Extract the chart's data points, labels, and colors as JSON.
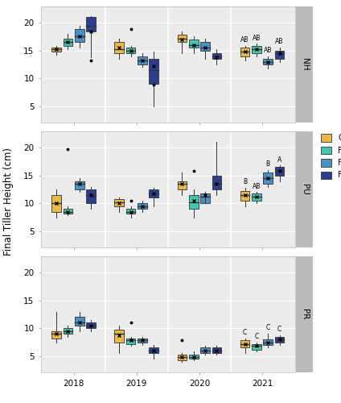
{
  "colors": {
    "CT": "#E8B84B",
    "F2": "#45C4B0",
    "F5": "#4A90C4",
    "F10": "#2C3E8C"
  },
  "ylabel": "Final Tiller Height (cm)",
  "years": [
    "2018",
    "2019",
    "2020",
    "2021"
  ],
  "panels": [
    "NH",
    "PU",
    "PR"
  ],
  "ylim": [
    2,
    23
  ],
  "yticks": [
    5,
    10,
    15,
    20
  ],
  "hline": 15.0,
  "background_color": "#FFFFFF",
  "strip_color": "#BBBBBB",
  "panel_bg": "#EBEBEB",
  "box_data": {
    "NH": {
      "2018": {
        "CT": {
          "q1": 14.8,
          "med": 15.2,
          "q3": 15.5,
          "whislo": 14.2,
          "whishi": 15.8,
          "mean": 15.2,
          "fliers": []
        },
        "F2": {
          "q1": 15.8,
          "med": 16.5,
          "q3": 17.2,
          "whislo": 15.3,
          "whishi": 18.0,
          "mean": 16.5,
          "fliers": []
        },
        "F5": {
          "q1": 16.5,
          "med": 17.5,
          "q3": 18.8,
          "whislo": 15.5,
          "whishi": 19.5,
          "mean": 17.5,
          "fliers": []
        },
        "F10": {
          "q1": 18.5,
          "med": 19.5,
          "q3": 21.0,
          "whislo": 13.8,
          "whishi": 21.2,
          "mean": 18.5,
          "fliers": [
            13.2
          ]
        }
      },
      "2019": {
        "CT": {
          "q1": 14.5,
          "med": 15.2,
          "q3": 16.5,
          "whislo": 13.5,
          "whishi": 17.2,
          "mean": 15.5,
          "fliers": []
        },
        "F2": {
          "q1": 14.5,
          "med": 15.0,
          "q3": 15.5,
          "whislo": 14.0,
          "whishi": 15.8,
          "mean": 15.0,
          "fliers": [
            18.8
          ]
        },
        "F5": {
          "q1": 12.5,
          "med": 13.2,
          "q3": 14.0,
          "whislo": 12.0,
          "whishi": 14.5,
          "mean": 13.2,
          "fliers": []
        },
        "F10": {
          "q1": 9.0,
          "med": 11.5,
          "q3": 13.5,
          "whislo": 5.0,
          "whishi": 14.8,
          "mean": 12.2,
          "fliers": [
            8.8
          ]
        }
      },
      "2020": {
        "CT": {
          "q1": 16.5,
          "med": 17.2,
          "q3": 17.8,
          "whislo": 14.5,
          "whishi": 18.5,
          "mean": 17.0,
          "fliers": []
        },
        "F2": {
          "q1": 15.5,
          "med": 16.0,
          "q3": 17.0,
          "whislo": 14.5,
          "whishi": 17.5,
          "mean": 16.0,
          "fliers": []
        },
        "F5": {
          "q1": 15.0,
          "med": 15.5,
          "q3": 16.5,
          "whislo": 13.5,
          "whishi": 17.2,
          "mean": 15.5,
          "fliers": []
        },
        "F10": {
          "q1": 13.5,
          "med": 14.0,
          "q3": 14.5,
          "whislo": 12.5,
          "whishi": 15.2,
          "mean": 13.8,
          "fliers": []
        }
      },
      "2021": {
        "CT": {
          "q1": 14.0,
          "med": 14.8,
          "q3": 15.5,
          "whislo": 13.2,
          "whishi": 15.8,
          "mean": 14.8,
          "fliers": []
        },
        "F2": {
          "q1": 14.5,
          "med": 15.2,
          "q3": 15.8,
          "whislo": 14.0,
          "whishi": 16.2,
          "mean": 15.2,
          "fliers": []
        },
        "F5": {
          "q1": 12.5,
          "med": 13.0,
          "q3": 13.5,
          "whislo": 11.8,
          "whishi": 14.0,
          "mean": 13.0,
          "fliers": []
        },
        "F10": {
          "q1": 13.5,
          "med": 14.5,
          "q3": 15.0,
          "whislo": 13.0,
          "whishi": 15.5,
          "mean": 14.5,
          "fliers": []
        }
      }
    },
    "PU": {
      "2018": {
        "CT": {
          "q1": 8.5,
          "med": 10.0,
          "q3": 11.5,
          "whislo": 7.5,
          "whishi": 12.5,
          "mean": 10.0,
          "fliers": []
        },
        "F2": {
          "q1": 8.2,
          "med": 8.5,
          "q3": 9.0,
          "whislo": 7.8,
          "whishi": 9.5,
          "mean": 8.5,
          "fliers": [
            19.8
          ]
        },
        "F5": {
          "q1": 12.5,
          "med": 13.5,
          "q3": 14.0,
          "whislo": 12.0,
          "whishi": 14.5,
          "mean": 13.5,
          "fliers": []
        },
        "F10": {
          "q1": 10.0,
          "med": 11.5,
          "q3": 12.5,
          "whislo": 9.0,
          "whishi": 13.0,
          "mean": 11.5,
          "fliers": []
        }
      },
      "2019": {
        "CT": {
          "q1": 9.5,
          "med": 10.2,
          "q3": 10.8,
          "whislo": 8.5,
          "whishi": 11.0,
          "mean": 10.0,
          "fliers": []
        },
        "F2": {
          "q1": 8.2,
          "med": 8.5,
          "q3": 9.0,
          "whislo": 7.5,
          "whishi": 9.5,
          "mean": 8.5,
          "fliers": [
            10.5
          ]
        },
        "F5": {
          "q1": 9.0,
          "med": 9.5,
          "q3": 10.0,
          "whislo": 8.5,
          "whishi": 10.5,
          "mean": 9.5,
          "fliers": []
        },
        "F10": {
          "q1": 11.0,
          "med": 11.8,
          "q3": 12.5,
          "whislo": 9.5,
          "whishi": 12.8,
          "mean": 11.8,
          "fliers": []
        }
      },
      "2020": {
        "CT": {
          "q1": 12.5,
          "med": 13.5,
          "q3": 14.0,
          "whislo": 11.5,
          "whishi": 15.5,
          "mean": 13.5,
          "fliers": []
        },
        "F2": {
          "q1": 9.0,
          "med": 10.2,
          "q3": 11.5,
          "whislo": 7.5,
          "whishi": 12.5,
          "mean": 10.5,
          "fliers": [
            15.8
          ]
        },
        "F5": {
          "q1": 10.0,
          "med": 11.2,
          "q3": 11.8,
          "whislo": 11.2,
          "whishi": 12.0,
          "mean": 11.5,
          "fliers": []
        },
        "F10": {
          "q1": 12.5,
          "med": 13.5,
          "q3": 15.0,
          "whislo": 11.5,
          "whishi": 21.0,
          "mean": 13.5,
          "fliers": []
        }
      },
      "2021": {
        "CT": {
          "q1": 10.5,
          "med": 11.5,
          "q3": 12.2,
          "whislo": 9.5,
          "whishi": 12.8,
          "mean": 11.5,
          "fliers": []
        },
        "F2": {
          "q1": 10.5,
          "med": 11.2,
          "q3": 11.8,
          "whislo": 10.0,
          "whishi": 12.0,
          "mean": 11.2,
          "fliers": []
        },
        "F5": {
          "q1": 13.5,
          "med": 14.5,
          "q3": 15.5,
          "whislo": 13.0,
          "whishi": 16.0,
          "mean": 14.5,
          "fliers": []
        },
        "F10": {
          "q1": 15.0,
          "med": 15.8,
          "q3": 16.5,
          "whislo": 14.0,
          "whishi": 16.8,
          "mean": 15.8,
          "fliers": []
        }
      }
    },
    "PR": {
      "2018": {
        "CT": {
          "q1": 8.2,
          "med": 9.0,
          "q3": 9.5,
          "whislo": 7.5,
          "whishi": 13.0,
          "mean": 9.0,
          "fliers": []
        },
        "F2": {
          "q1": 9.0,
          "med": 9.5,
          "q3": 10.0,
          "whislo": 8.5,
          "whishi": 10.5,
          "mean": 9.5,
          "fliers": []
        },
        "F5": {
          "q1": 10.5,
          "med": 11.0,
          "q3": 12.0,
          "whislo": 9.5,
          "whishi": 13.0,
          "mean": 11.0,
          "fliers": []
        },
        "F10": {
          "q1": 10.0,
          "med": 10.5,
          "q3": 11.0,
          "whislo": 9.5,
          "whishi": 11.5,
          "mean": 10.5,
          "fliers": []
        }
      },
      "2019": {
        "CT": {
          "q1": 7.5,
          "med": 9.0,
          "q3": 9.8,
          "whislo": 5.5,
          "whishi": 10.5,
          "mean": 8.8,
          "fliers": []
        },
        "F2": {
          "q1": 7.2,
          "med": 7.8,
          "q3": 8.2,
          "whislo": 6.8,
          "whishi": 8.5,
          "mean": 7.8,
          "fliers": [
            11.0
          ]
        },
        "F5": {
          "q1": 7.5,
          "med": 7.8,
          "q3": 8.2,
          "whislo": 7.0,
          "whishi": 8.5,
          "mean": 7.8,
          "fliers": []
        },
        "F10": {
          "q1": 5.5,
          "med": 6.0,
          "q3": 6.5,
          "whislo": 4.5,
          "whishi": 7.0,
          "mean": 6.0,
          "fliers": []
        }
      },
      "2020": {
        "CT": {
          "q1": 4.2,
          "med": 4.8,
          "q3": 5.2,
          "whislo": 4.0,
          "whishi": 5.5,
          "mean": 4.8,
          "fliers": [
            7.8
          ]
        },
        "F2": {
          "q1": 4.5,
          "med": 4.8,
          "q3": 5.2,
          "whislo": 4.2,
          "whishi": 5.8,
          "mean": 4.8,
          "fliers": []
        },
        "F5": {
          "q1": 5.5,
          "med": 6.0,
          "q3": 6.5,
          "whislo": 5.2,
          "whishi": 6.8,
          "mean": 6.0,
          "fliers": []
        },
        "F10": {
          "q1": 5.5,
          "med": 6.0,
          "q3": 6.5,
          "whislo": 5.2,
          "whishi": 6.8,
          "mean": 6.0,
          "fliers": []
        }
      },
      "2021": {
        "CT": {
          "q1": 6.5,
          "med": 7.2,
          "q3": 7.8,
          "whislo": 5.5,
          "whishi": 8.2,
          "mean": 7.2,
          "fliers": []
        },
        "F2": {
          "q1": 6.2,
          "med": 6.8,
          "q3": 7.2,
          "whislo": 5.8,
          "whishi": 7.5,
          "mean": 6.8,
          "fliers": []
        },
        "F5": {
          "q1": 7.0,
          "med": 7.5,
          "q3": 8.0,
          "whislo": 6.5,
          "whishi": 9.0,
          "mean": 7.5,
          "fliers": []
        },
        "F10": {
          "q1": 7.5,
          "med": 8.0,
          "q3": 8.5,
          "whislo": 7.0,
          "whishi": 8.8,
          "mean": 8.0,
          "fliers": []
        }
      }
    }
  },
  "sig_labels": {
    "NH": {
      "2021": {
        "CT": "AB",
        "F2": "AB",
        "F5": "AB",
        "F10": "AB"
      }
    },
    "PU": {
      "2021": {
        "CT": "B",
        "F2": "AB",
        "F5": "B",
        "F10": "A"
      }
    },
    "PR": {
      "2021": {
        "CT": "C",
        "F2": "C",
        "F5": "C",
        "F10": "C"
      }
    }
  }
}
